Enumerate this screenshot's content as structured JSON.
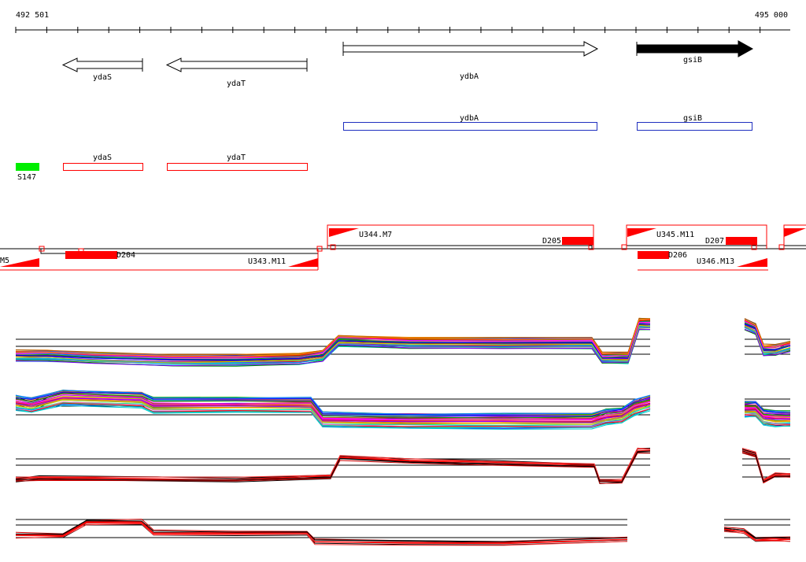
{
  "ruler": {
    "start_label": "492 501",
    "end_label": "495 000"
  },
  "genes": [
    {
      "name": "ydaS",
      "strand": "-",
      "filled": false
    },
    {
      "name": "ydaT",
      "strand": "-",
      "filled": false
    },
    {
      "name": "ydbA",
      "strand": "+",
      "filled": false
    },
    {
      "name": "gsiB",
      "strand": "+",
      "filled": true
    }
  ],
  "blue_features": [
    {
      "name": "ydbA"
    },
    {
      "name": "gsiB"
    }
  ],
  "red_features": [
    {
      "name": "ydaS"
    },
    {
      "name": "ydaT"
    }
  ],
  "green_feature": {
    "name": "S147"
  },
  "segment_labels": {
    "m5": "M5",
    "d204": "D204",
    "u343": "U343.M11",
    "u344": "U344.M7",
    "d205": "D205",
    "u345": "U345.M11",
    "d207": "D207",
    "d206": "D206",
    "u346": "U346.M13"
  },
  "colors": {
    "gene_filled": "#000000",
    "blue_box": "#1f2fbf",
    "red_box": "#ff0000",
    "green_box": "#00ee00",
    "segment": "#ff0000"
  },
  "tracks": [
    {
      "id": "track-1",
      "kind": "multicolor"
    },
    {
      "id": "track-2",
      "kind": "multicolor"
    },
    {
      "id": "track-3",
      "kind": "red-black"
    },
    {
      "id": "track-4",
      "kind": "red-black"
    }
  ]
}
